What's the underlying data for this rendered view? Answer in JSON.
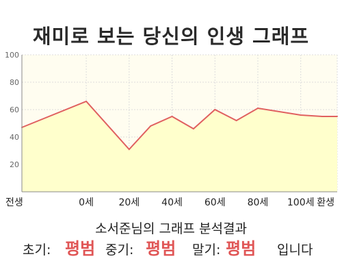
{
  "title": "재미로 보는 당신의 인생 그래프",
  "chart_data": {
    "type": "area",
    "x_labels": [
      "전생",
      "0세",
      "20세",
      "40세",
      "60세",
      "80세",
      "100세",
      "환생"
    ],
    "y_ticks": [
      20,
      40,
      60,
      80,
      100
    ],
    "ylim": [
      0,
      100
    ],
    "series": [
      {
        "points": [
          {
            "x": "전생",
            "y": 47
          },
          {
            "x": "0세",
            "y": 66
          },
          {
            "x": "20세",
            "y": 31
          },
          {
            "x": "30세",
            "y": 48
          },
          {
            "x": "40세",
            "y": 55
          },
          {
            "x": "50세",
            "y": 46
          },
          {
            "x": "60세",
            "y": 60
          },
          {
            "x": "70세",
            "y": 52
          },
          {
            "x": "80세",
            "y": 61
          },
          {
            "x": "100세",
            "y": 56
          },
          {
            "x": "110세",
            "y": 55
          },
          {
            "x": "환생",
            "y": 55
          }
        ]
      }
    ],
    "colors": {
      "line": "#e06060",
      "fill": "#ffffcc",
      "plot_bg": "#fffdf0",
      "grid": "#dcdcdc"
    },
    "grid": true
  },
  "summary": {
    "title": "소서준님의 그래프 분석결과",
    "early_label": "초기:",
    "early_value": "평범",
    "mid_label": "중기:",
    "mid_value": "평범",
    "late_label": "말기:",
    "late_value": "평범",
    "suffix": "입니다",
    "highlight_color": "#e05555"
  }
}
